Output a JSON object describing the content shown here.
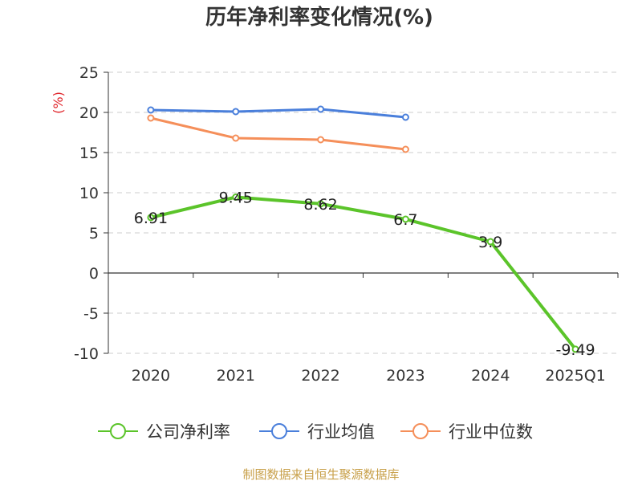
{
  "chart_data": {
    "type": "line",
    "title": "历年净利率变化情况(%)",
    "ylabel": "(%)",
    "xlabel": "",
    "categories": [
      "2020",
      "2021",
      "2022",
      "2023",
      "2024",
      "2025Q1"
    ],
    "ylim": [
      -10,
      25
    ],
    "yticks": [
      25,
      20,
      15,
      10,
      5,
      0,
      -5,
      -10
    ],
    "grid": true,
    "legend_position": "bottom",
    "series": [
      {
        "name": "公司净利率",
        "color": "#5BC42A",
        "values": [
          6.91,
          9.45,
          8.62,
          6.7,
          3.9,
          -9.49
        ],
        "labels": [
          "6.91",
          "9.45",
          "8.62",
          "6.7",
          "3.9",
          "-9.49"
        ]
      },
      {
        "name": "行业均值",
        "color": "#4A7FDB",
        "values": [
          20.3,
          20.1,
          20.4,
          19.4,
          null,
          null
        ]
      },
      {
        "name": "行业中位数",
        "color": "#F58F5A",
        "values": [
          19.3,
          16.8,
          16.6,
          15.4,
          null,
          null
        ]
      }
    ],
    "ylabel_color": "#E0242A"
  },
  "footer": {
    "source": "制图数据来自恒生聚源数据库",
    "source_color": "#C8A04A"
  }
}
